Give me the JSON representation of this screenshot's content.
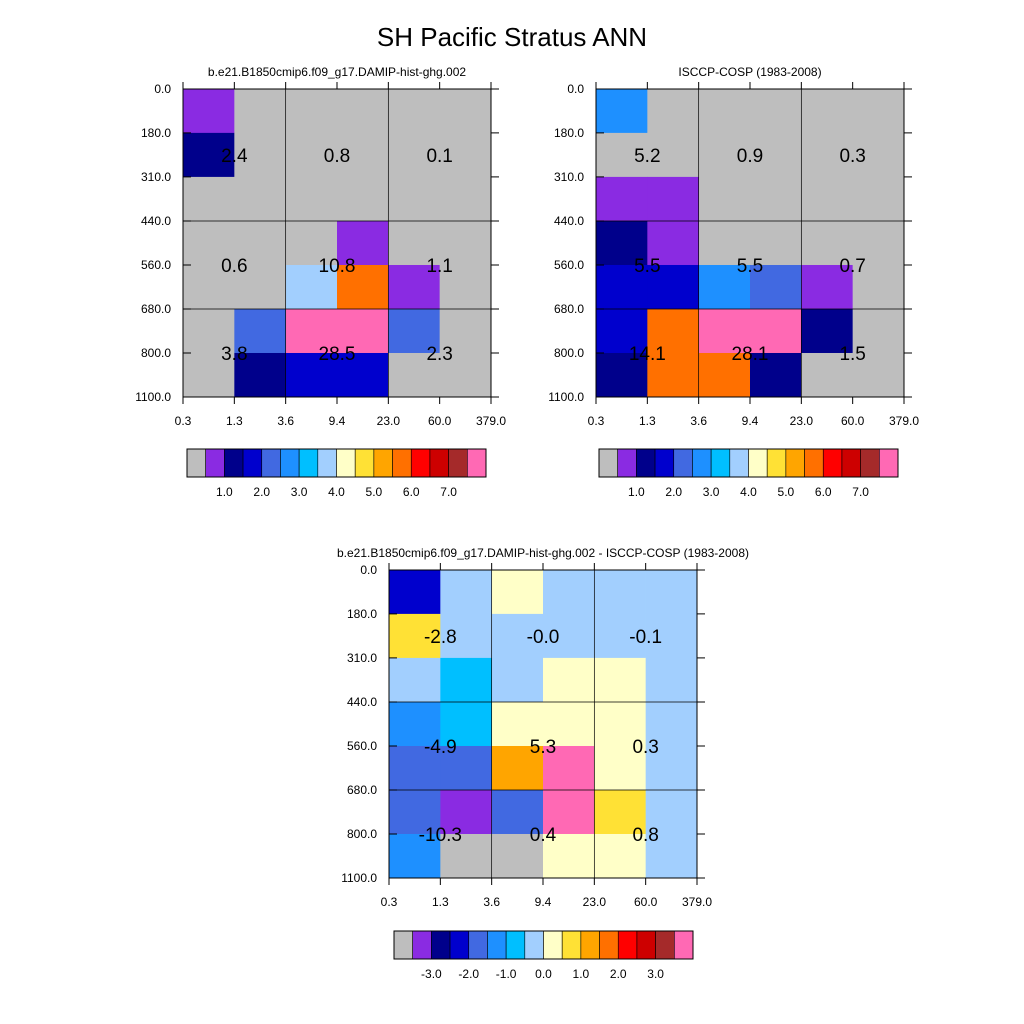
{
  "title": "SH Pacific Stratus ANN",
  "palette": {
    "colors": [
      "#bebebe",
      "#8a2be2",
      "#00008b",
      "#0000cd",
      "#4169e1",
      "#1e90ff",
      "#00bfff",
      "#a2cffe",
      "#ffffc8",
      "#ffe135",
      "#ffa500",
      "#ff7000",
      "#ff0000",
      "#cd0000",
      "#a52a2a",
      "#ff69b4"
    ]
  },
  "chart_data": [
    {
      "type": "heatmap",
      "title": "b.e21.B1850cmip6.f09_g17.DAMIP-hist-ghg.002",
      "x_tick_labels": [
        "0.3",
        "1.3",
        "3.6",
        "9.4",
        "23.0",
        "60.0",
        "379.0"
      ],
      "y_tick_labels": [
        "0.0",
        "180.0",
        "310.0",
        "440.0",
        "560.0",
        "680.0",
        "800.0",
        "1100.0"
      ],
      "cell_color_index": [
        [
          1,
          0,
          0,
          0,
          0,
          0
        ],
        [
          2,
          0,
          0,
          0,
          0,
          0
        ],
        [
          0,
          0,
          0,
          0,
          0,
          0
        ],
        [
          0,
          0,
          0,
          1,
          0,
          0
        ],
        [
          0,
          0,
          7,
          11,
          1,
          0
        ],
        [
          0,
          4,
          15,
          15,
          4,
          0
        ],
        [
          0,
          2,
          3,
          3,
          0,
          0
        ]
      ],
      "box_values": [
        [
          "2.4",
          "0.8",
          "0.1"
        ],
        [
          "0.6",
          "10.8",
          "1.1"
        ],
        [
          "3.8",
          "28.5",
          "2.3"
        ]
      ],
      "colorbar_labels": [
        "1.0",
        "2.0",
        "3.0",
        "4.0",
        "5.0",
        "6.0",
        "7.0"
      ]
    },
    {
      "type": "heatmap",
      "title": "ISCCP-COSP (1983-2008)",
      "x_tick_labels": [
        "0.3",
        "1.3",
        "3.6",
        "9.4",
        "23.0",
        "60.0",
        "379.0"
      ],
      "y_tick_labels": [
        "0.0",
        "180.0",
        "310.0",
        "440.0",
        "560.0",
        "680.0",
        "800.0",
        "1100.0"
      ],
      "cell_color_index": [
        [
          5,
          0,
          0,
          0,
          0,
          0
        ],
        [
          0,
          0,
          0,
          0,
          0,
          0
        ],
        [
          1,
          1,
          0,
          0,
          0,
          0
        ],
        [
          2,
          1,
          0,
          0,
          0,
          0
        ],
        [
          3,
          3,
          5,
          4,
          1,
          0
        ],
        [
          3,
          11,
          15,
          15,
          2,
          0
        ],
        [
          2,
          11,
          11,
          2,
          0,
          0
        ]
      ],
      "box_values": [
        [
          "5.2",
          "0.9",
          "0.3"
        ],
        [
          "5.5",
          "5.5",
          "0.7"
        ],
        [
          "14.1",
          "28.1",
          "1.5"
        ]
      ],
      "colorbar_labels": [
        "1.0",
        "2.0",
        "3.0",
        "4.0",
        "5.0",
        "6.0",
        "7.0"
      ]
    },
    {
      "type": "heatmap",
      "title": "b.e21.B1850cmip6.f09_g17.DAMIP-hist-ghg.002 - ISCCP-COSP (1983-2008)",
      "x_tick_labels": [
        "0.3",
        "1.3",
        "3.6",
        "9.4",
        "23.0",
        "60.0",
        "379.0"
      ],
      "y_tick_labels": [
        "0.0",
        "180.0",
        "310.0",
        "440.0",
        "560.0",
        "680.0",
        "800.0",
        "1100.0"
      ],
      "cell_color_index": [
        [
          3,
          7,
          8,
          7,
          7,
          7
        ],
        [
          9,
          7,
          7,
          7,
          7,
          7
        ],
        [
          7,
          6,
          7,
          8,
          8,
          7
        ],
        [
          5,
          6,
          8,
          8,
          8,
          7
        ],
        [
          4,
          4,
          10,
          15,
          8,
          7
        ],
        [
          4,
          1,
          4,
          15,
          9,
          7
        ],
        [
          5,
          0,
          0,
          8,
          8,
          7
        ]
      ],
      "box_values": [
        [
          "-2.8",
          "-0.0",
          "-0.1"
        ],
        [
          "-4.9",
          "5.3",
          "0.3"
        ],
        [
          "-10.3",
          "0.4",
          "0.8"
        ]
      ],
      "colorbar_labels": [
        "-3.0",
        "-2.0",
        "-1.0",
        "0.0",
        "1.0",
        "2.0",
        "3.0"
      ]
    }
  ]
}
